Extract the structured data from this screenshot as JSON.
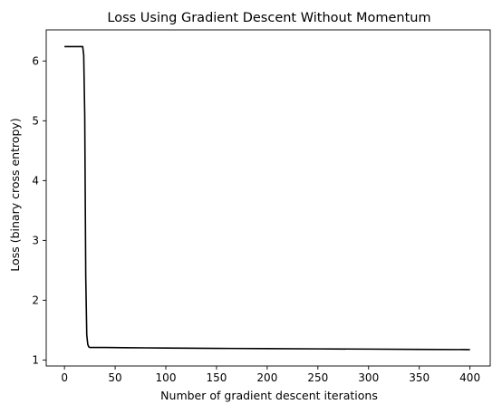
{
  "chart_data": {
    "type": "line",
    "title": "Loss Using Gradient Descent Without Momentum",
    "xlabel": "Number of gradient descent iterations",
    "ylabel": "Loss (binary cross entropy)",
    "xlim": [
      -18,
      420
    ],
    "ylim": [
      0.9,
      6.52
    ],
    "xticks": [
      0,
      50,
      100,
      150,
      200,
      250,
      300,
      350,
      400
    ],
    "yticks": [
      1,
      2,
      3,
      4,
      5,
      6
    ],
    "grid": false,
    "series": [
      {
        "color": "#000000",
        "x": [
          0,
          10,
          18,
          19,
          20,
          21,
          22,
          23,
          24,
          25,
          26,
          28,
          30,
          40,
          60,
          80,
          100,
          150,
          200,
          250,
          300,
          350,
          400
        ],
        "y": [
          6.24,
          6.24,
          6.24,
          6.1,
          5.1,
          2.4,
          1.42,
          1.26,
          1.22,
          1.21,
          1.21,
          1.21,
          1.21,
          1.21,
          1.206,
          1.203,
          1.2,
          1.195,
          1.19,
          1.186,
          1.182,
          1.178,
          1.174
        ]
      }
    ]
  }
}
